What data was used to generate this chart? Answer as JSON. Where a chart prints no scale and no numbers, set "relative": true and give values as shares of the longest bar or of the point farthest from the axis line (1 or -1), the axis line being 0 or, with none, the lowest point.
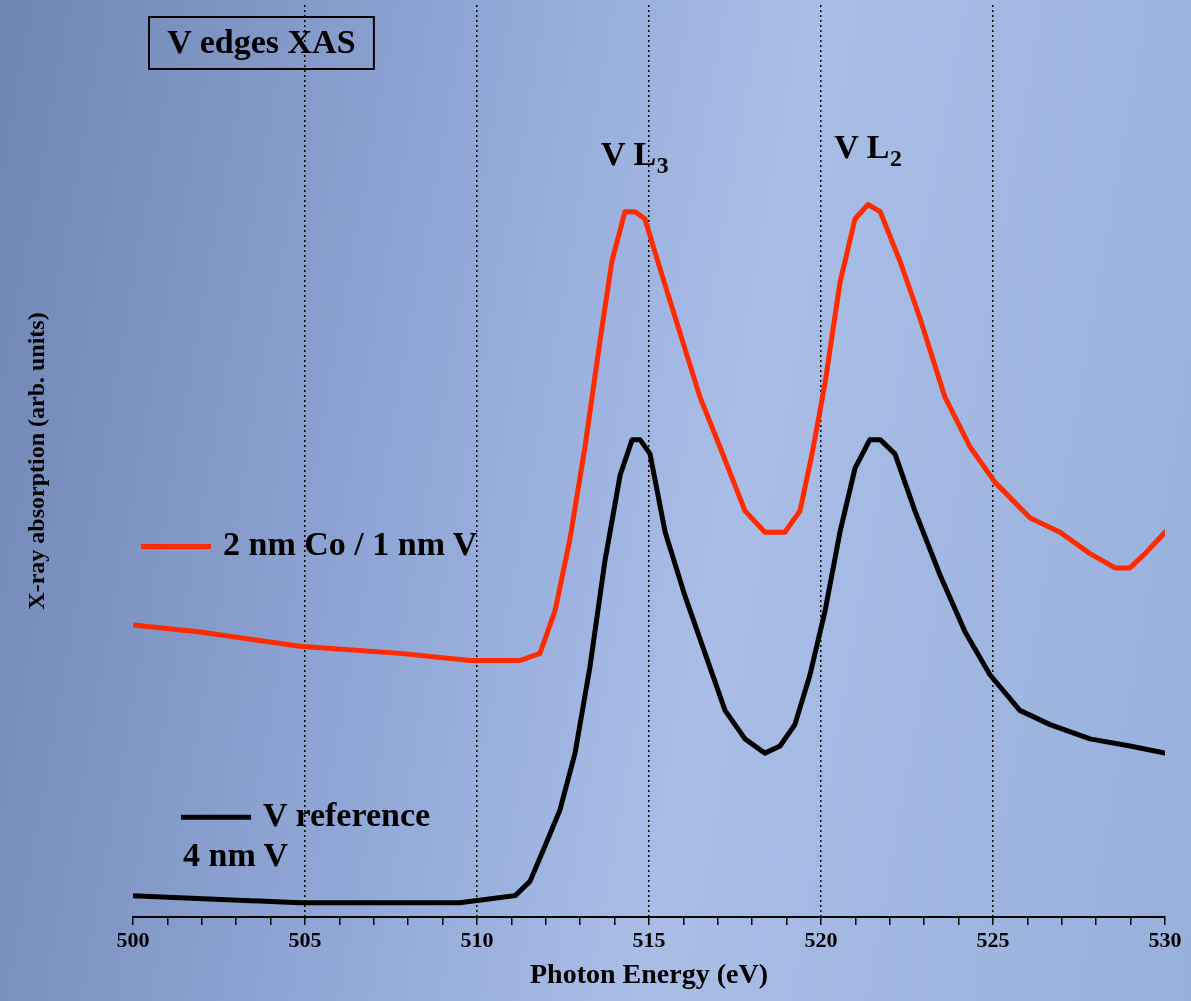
{
  "chart_data": {
    "type": "line",
    "title": "V edges XAS",
    "xlabel": "Photon Energy (eV)",
    "ylabel": "X-ray absorption (arb. units)",
    "relative": true,
    "grid": "x",
    "legend": "left",
    "line_style": "solid",
    "marker": "none",
    "xlim": [
      500,
      530
    ],
    "xticks": [
      500,
      {
        "value": 501,
        "label": null
      },
      {
        "value": 502,
        "label": null
      },
      {
        "value": 503,
        "label": null
      },
      {
        "value": 504,
        "label": null
      },
      505,
      {
        "value": 506,
        "label": null
      },
      {
        "value": 507,
        "label": null
      },
      {
        "value": 508,
        "label": null
      },
      {
        "value": 509,
        "label": null
      },
      510,
      {
        "value": 511,
        "label": null
      },
      {
        "value": 512,
        "label": null
      },
      {
        "value": 513,
        "label": null
      },
      {
        "value": 514,
        "label": null
      },
      515,
      {
        "value": 516,
        "label": null
      },
      {
        "value": 517,
        "label": null
      },
      {
        "value": 518,
        "label": null
      },
      {
        "value": 519,
        "label": null
      },
      520,
      {
        "value": 521,
        "label": null
      },
      {
        "value": 522,
        "label": null
      },
      {
        "value": 523,
        "label": null
      },
      {
        "value": 524,
        "label": null
      },
      525,
      {
        "value": 526,
        "label": null
      },
      {
        "value": 527,
        "label": null
      },
      {
        "value": 528,
        "label": null
      },
      {
        "value": 529,
        "label": null
      },
      530
    ],
    "annotations": [
      {
        "text": "V L$_{3}$",
        "x": 514.59,
        "y": 0.99
      },
      {
        "text": "V L$_{2}$",
        "x": 521.37,
        "y": 1
      }
    ],
    "series": [
      {
        "name": "2 nm Co / 1 nm V",
        "color": "#ff2a00",
        "x": [
          500,
          501.95,
          504.85,
          507.76,
          509.8,
          511.25,
          511.83,
          512.27,
          512.7,
          513.14,
          513.58,
          513.92,
          514.3,
          514.59,
          514.88,
          515.32,
          515.9,
          516.48,
          517.06,
          517.79,
          518.37,
          518.95,
          519.39,
          519.74,
          520.12,
          520.55,
          520.99,
          521.37,
          521.72,
          522.3,
          522.88,
          523.6,
          524.33,
          525.06,
          526.08,
          526.95,
          527.82,
          528.55,
          528.98,
          529.42,
          530
        ],
        "values": [
          0.41,
          0.4,
          0.38,
          0.37,
          0.36,
          0.36,
          0.37,
          0.43,
          0.53,
          0.66,
          0.81,
          0.92,
          0.99,
          0.99,
          0.98,
          0.91,
          0.82,
          0.73,
          0.66,
          0.57,
          0.54,
          0.54,
          0.57,
          0.65,
          0.75,
          0.89,
          0.98,
          1,
          0.99,
          0.92,
          0.84,
          0.73,
          0.66,
          0.61,
          0.56,
          0.54,
          0.51,
          0.49,
          0.49,
          0.51,
          0.54
        ]
      },
      {
        "name": "V reference\n4 nm V",
        "color": "#000000",
        "x": [
          500,
          504.85,
          507.76,
          509.5,
          511.11,
          511.54,
          511.98,
          512.41,
          512.85,
          513.28,
          513.72,
          514.16,
          514.51,
          514.74,
          515.03,
          515.47,
          516.05,
          516.63,
          517.21,
          517.79,
          518.37,
          518.81,
          519.24,
          519.68,
          520.12,
          520.55,
          520.99,
          521.42,
          521.72,
          522.15,
          522.73,
          523.46,
          524.19,
          524.91,
          525.78,
          526.66,
          527.82,
          528.98,
          530
        ],
        "values": [
          0.03,
          0.02,
          0.02,
          0.02,
          0.03,
          0.05,
          0.1,
          0.15,
          0.23,
          0.35,
          0.5,
          0.62,
          0.67,
          0.67,
          0.65,
          0.54,
          0.45,
          0.37,
          0.29,
          0.25,
          0.23,
          0.24,
          0.27,
          0.34,
          0.43,
          0.54,
          0.63,
          0.67,
          0.67,
          0.65,
          0.57,
          0.48,
          0.4,
          0.34,
          0.29,
          0.27,
          0.25,
          0.24,
          0.23
        ]
      }
    ]
  }
}
